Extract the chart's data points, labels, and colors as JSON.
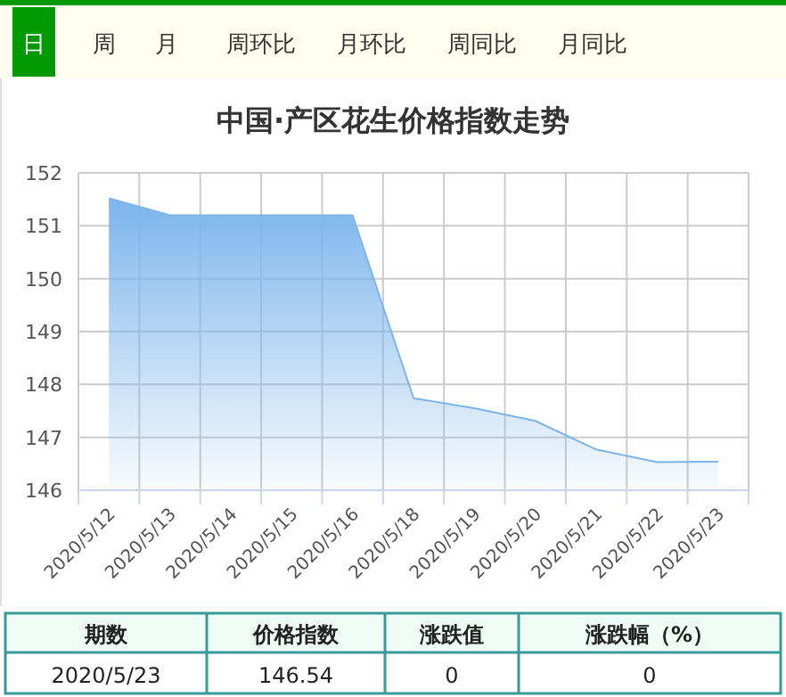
{
  "chart_data": {
    "type": "area",
    "title": "中国·产区花生价格指数走势",
    "categories": [
      "2020/5/12",
      "2020/5/13",
      "2020/5/14",
      "2020/5/15",
      "2020/5/16",
      "2020/5/18",
      "2020/5/19",
      "2020/5/20",
      "2020/5/21",
      "2020/5/22",
      "2020/5/23"
    ],
    "series": [
      {
        "color": "#7cb5ec",
        "values": [
          151.52,
          151.2,
          151.2,
          151.2,
          151.2,
          147.74,
          147.55,
          147.31,
          146.77,
          146.53,
          146.54
        ]
      }
    ],
    "ylim": [
      146,
      152
    ],
    "yticks": [
      146,
      147,
      148,
      149,
      150,
      151,
      152
    ],
    "grid": true,
    "annotations": [
      "日",
      "周",
      "月",
      "周环比",
      "月环比",
      "周同比",
      "月同比",
      "期数",
      "价格指数",
      "涨跌值",
      "涨跌幅（%）",
      "2020/5/23",
      "146.54",
      "0",
      "0"
    ]
  }
}
